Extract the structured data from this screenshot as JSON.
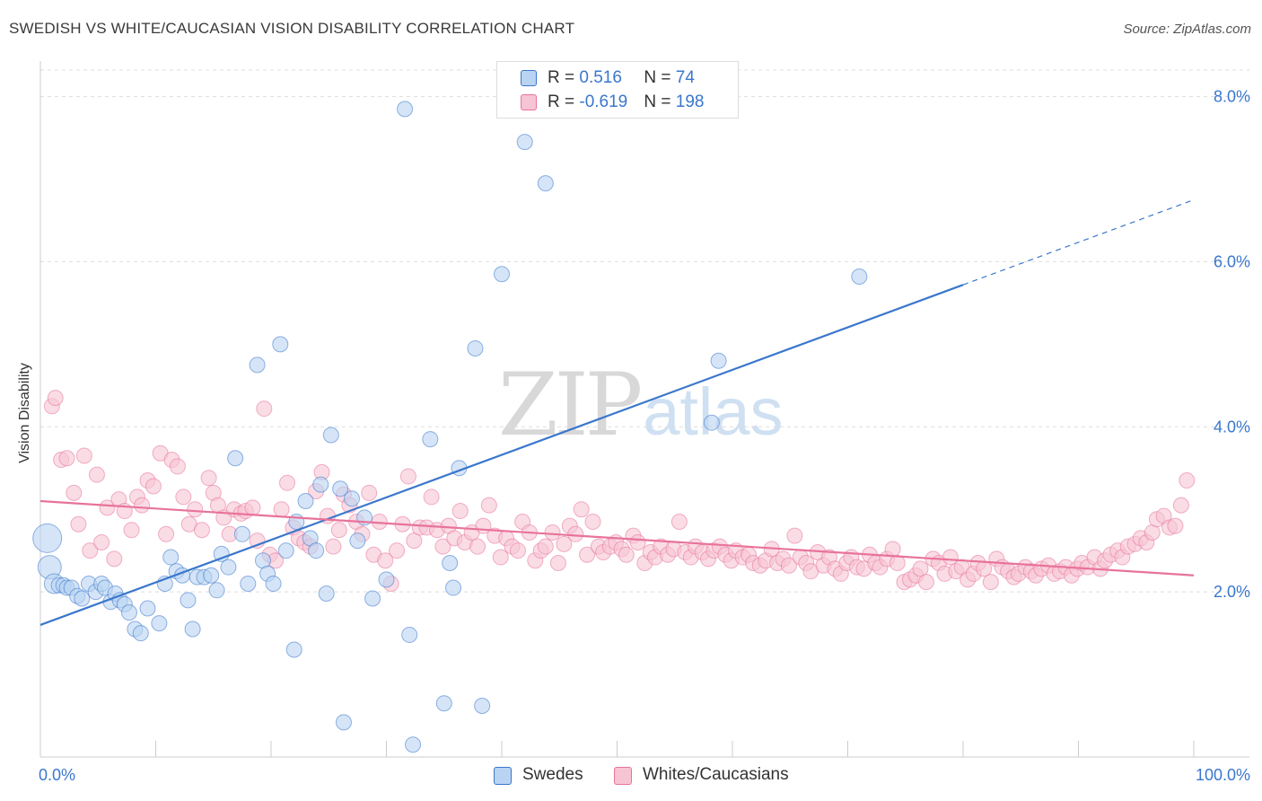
{
  "title": "SWEDISH VS WHITE/CAUCASIAN VISION DISABILITY CORRELATION CHART",
  "source": "Source: ZipAtlas.com",
  "watermark": {
    "zip": "ZIP",
    "atlas": "atlas"
  },
  "colors": {
    "blue": "#3a77cc",
    "blue_fill": "#b9d3f2",
    "pink": "#e8739a",
    "pink_fill": "#f7c4d4",
    "grid": "#dddddd"
  },
  "legend": {
    "rows": [
      {
        "r_label": "R = ",
        "r_value": "0.516",
        "n_label": "N = ",
        "n_value": "74"
      },
      {
        "r_label": "R = ",
        "r_value": "-0.619",
        "n_label": "N = ",
        "n_value": "198"
      }
    ]
  },
  "chart_data": {
    "type": "scatter",
    "title": "SWEDISH VS WHITE/CAUCASIAN VISION DISABILITY CORRELATION CHART",
    "xlabel": "",
    "ylabel": "Vision Disability",
    "xlim": [
      0,
      100
    ],
    "ylim": [
      0,
      8.3
    ],
    "x_tick_labels": [
      "0.0%",
      "100.0%"
    ],
    "y_ticks": [
      2.0,
      4.0,
      6.0,
      8.0
    ],
    "y_tick_labels": [
      "2.0%",
      "4.0%",
      "6.0%",
      "8.0%"
    ],
    "grid": true,
    "legend_position": "top-center",
    "series": [
      {
        "name": "Swedes",
        "color": "#3a77cc",
        "fill": "#b9d3f2",
        "trend": {
          "x": [
            0,
            80
          ],
          "y": [
            1.6,
            5.72
          ],
          "dashed_to": [
            100,
            6.75
          ]
        },
        "points": [
          [
            0.6,
            2.65
          ],
          [
            0.8,
            2.3
          ],
          [
            1.2,
            2.1
          ],
          [
            1.6,
            2.08
          ],
          [
            2.0,
            2.08
          ],
          [
            2.3,
            2.05
          ],
          [
            2.7,
            2.05
          ],
          [
            3.2,
            1.95
          ],
          [
            3.6,
            1.92
          ],
          [
            4.2,
            2.1
          ],
          [
            4.8,
            2.0
          ],
          [
            5.3,
            2.1
          ],
          [
            5.6,
            2.05
          ],
          [
            6.1,
            1.88
          ],
          [
            6.5,
            1.98
          ],
          [
            6.9,
            1.9
          ],
          [
            7.3,
            1.85
          ],
          [
            7.7,
            1.75
          ],
          [
            8.2,
            1.55
          ],
          [
            8.7,
            1.5
          ],
          [
            9.3,
            1.8
          ],
          [
            10.3,
            1.62
          ],
          [
            10.8,
            2.1
          ],
          [
            11.3,
            2.42
          ],
          [
            11.8,
            2.25
          ],
          [
            12.3,
            2.2
          ],
          [
            12.8,
            1.9
          ],
          [
            13.2,
            1.55
          ],
          [
            13.6,
            2.18
          ],
          [
            14.2,
            2.18
          ],
          [
            14.8,
            2.2
          ],
          [
            15.3,
            2.02
          ],
          [
            15.7,
            2.46
          ],
          [
            16.3,
            2.3
          ],
          [
            16.9,
            3.62
          ],
          [
            17.5,
            2.7
          ],
          [
            18.0,
            2.1
          ],
          [
            18.8,
            4.75
          ],
          [
            19.3,
            2.38
          ],
          [
            19.7,
            2.22
          ],
          [
            20.2,
            2.1
          ],
          [
            20.8,
            5.0
          ],
          [
            21.3,
            2.5
          ],
          [
            22.0,
            1.3
          ],
          [
            22.2,
            2.85
          ],
          [
            23.0,
            3.1
          ],
          [
            23.4,
            2.65
          ],
          [
            23.9,
            2.5
          ],
          [
            24.3,
            3.3
          ],
          [
            24.8,
            1.98
          ],
          [
            25.2,
            3.9
          ],
          [
            26.0,
            3.25
          ],
          [
            26.3,
            0.42
          ],
          [
            27.0,
            3.13
          ],
          [
            27.5,
            2.62
          ],
          [
            28.1,
            2.9
          ],
          [
            28.8,
            1.92
          ],
          [
            30.0,
            2.15
          ],
          [
            31.6,
            7.85
          ],
          [
            32.0,
            1.48
          ],
          [
            32.3,
            0.15
          ],
          [
            33.8,
            3.85
          ],
          [
            35.0,
            0.65
          ],
          [
            35.5,
            2.35
          ],
          [
            35.8,
            2.05
          ],
          [
            36.3,
            3.5
          ],
          [
            37.7,
            4.95
          ],
          [
            38.3,
            0.62
          ],
          [
            40.0,
            5.85
          ],
          [
            42.0,
            7.45
          ],
          [
            43.8,
            6.95
          ],
          [
            58.2,
            4.05
          ],
          [
            58.8,
            4.8
          ],
          [
            71.0,
            5.82
          ]
        ]
      },
      {
        "name": "Whites/Caucasians",
        "color": "#e8739a",
        "fill": "#f7c4d4",
        "trend": {
          "x": [
            0,
            100
          ],
          "y": [
            3.1,
            2.2
          ]
        },
        "points": [
          [
            1.0,
            4.25
          ],
          [
            1.3,
            4.35
          ],
          [
            1.8,
            3.6
          ],
          [
            2.3,
            3.62
          ],
          [
            2.9,
            3.2
          ],
          [
            3.3,
            2.82
          ],
          [
            3.8,
            3.65
          ],
          [
            4.3,
            2.5
          ],
          [
            4.9,
            3.42
          ],
          [
            5.3,
            2.6
          ],
          [
            5.8,
            3.02
          ],
          [
            6.4,
            2.4
          ],
          [
            6.8,
            3.12
          ],
          [
            7.3,
            2.98
          ],
          [
            7.9,
            2.75
          ],
          [
            8.4,
            3.15
          ],
          [
            8.8,
            3.05
          ],
          [
            9.3,
            3.35
          ],
          [
            9.8,
            3.28
          ],
          [
            10.4,
            3.68
          ],
          [
            10.9,
            2.7
          ],
          [
            11.4,
            3.6
          ],
          [
            11.9,
            3.52
          ],
          [
            12.4,
            3.15
          ],
          [
            12.9,
            2.82
          ],
          [
            13.4,
            3.0
          ],
          [
            14.0,
            2.75
          ],
          [
            14.6,
            3.38
          ],
          [
            15.0,
            3.2
          ],
          [
            15.4,
            3.05
          ],
          [
            15.9,
            2.9
          ],
          [
            16.4,
            2.7
          ],
          [
            16.8,
            3.0
          ],
          [
            17.4,
            2.95
          ],
          [
            17.8,
            2.98
          ],
          [
            18.4,
            3.02
          ],
          [
            18.8,
            2.62
          ],
          [
            19.4,
            4.22
          ],
          [
            19.9,
            2.45
          ],
          [
            20.4,
            2.38
          ],
          [
            20.9,
            3.0
          ],
          [
            21.4,
            3.32
          ],
          [
            21.9,
            2.78
          ],
          [
            22.4,
            2.65
          ],
          [
            22.9,
            2.6
          ],
          [
            23.4,
            2.55
          ],
          [
            23.9,
            3.22
          ],
          [
            24.4,
            3.45
          ],
          [
            24.9,
            2.92
          ],
          [
            25.4,
            2.55
          ],
          [
            25.9,
            2.75
          ],
          [
            26.3,
            3.18
          ],
          [
            26.8,
            3.05
          ],
          [
            27.4,
            2.85
          ],
          [
            27.9,
            2.7
          ],
          [
            28.5,
            3.2
          ],
          [
            28.9,
            2.45
          ],
          [
            29.4,
            2.85
          ],
          [
            29.9,
            2.38
          ],
          [
            30.4,
            2.1
          ],
          [
            30.9,
            2.5
          ],
          [
            31.4,
            2.82
          ],
          [
            31.9,
            3.4
          ],
          [
            32.4,
            2.62
          ],
          [
            32.9,
            2.78
          ],
          [
            33.5,
            2.78
          ],
          [
            33.9,
            3.15
          ],
          [
            34.4,
            2.75
          ],
          [
            34.9,
            2.55
          ],
          [
            35.4,
            2.8
          ],
          [
            35.9,
            2.65
          ],
          [
            36.4,
            2.98
          ],
          [
            36.8,
            2.6
          ],
          [
            37.4,
            2.72
          ],
          [
            37.9,
            2.55
          ],
          [
            38.4,
            2.8
          ],
          [
            38.9,
            3.05
          ],
          [
            39.4,
            2.68
          ],
          [
            39.9,
            2.42
          ],
          [
            40.4,
            2.65
          ],
          [
            40.9,
            2.55
          ],
          [
            41.4,
            2.5
          ],
          [
            41.8,
            2.85
          ],
          [
            42.4,
            2.72
          ],
          [
            42.9,
            2.38
          ],
          [
            43.4,
            2.5
          ],
          [
            43.8,
            2.55
          ],
          [
            44.4,
            2.72
          ],
          [
            44.9,
            2.35
          ],
          [
            45.4,
            2.58
          ],
          [
            45.9,
            2.8
          ],
          [
            46.4,
            2.7
          ],
          [
            46.9,
            3.0
          ],
          [
            47.4,
            2.45
          ],
          [
            47.9,
            2.85
          ],
          [
            48.4,
            2.55
          ],
          [
            48.8,
            2.48
          ],
          [
            49.4,
            2.55
          ],
          [
            49.9,
            2.6
          ],
          [
            50.4,
            2.52
          ],
          [
            50.8,
            2.45
          ],
          [
            51.4,
            2.68
          ],
          [
            51.8,
            2.6
          ],
          [
            52.4,
            2.35
          ],
          [
            52.9,
            2.48
          ],
          [
            53.3,
            2.42
          ],
          [
            53.8,
            2.55
          ],
          [
            54.4,
            2.45
          ],
          [
            54.9,
            2.52
          ],
          [
            55.4,
            2.85
          ],
          [
            55.9,
            2.48
          ],
          [
            56.4,
            2.42
          ],
          [
            56.8,
            2.55
          ],
          [
            57.4,
            2.48
          ],
          [
            57.9,
            2.4
          ],
          [
            58.4,
            2.5
          ],
          [
            58.9,
            2.55
          ],
          [
            59.4,
            2.45
          ],
          [
            59.9,
            2.38
          ],
          [
            60.3,
            2.5
          ],
          [
            60.9,
            2.42
          ],
          [
            61.4,
            2.45
          ],
          [
            61.8,
            2.35
          ],
          [
            62.4,
            2.32
          ],
          [
            62.9,
            2.38
          ],
          [
            63.4,
            2.52
          ],
          [
            63.9,
            2.35
          ],
          [
            64.4,
            2.4
          ],
          [
            64.9,
            2.32
          ],
          [
            65.4,
            2.68
          ],
          [
            65.9,
            2.42
          ],
          [
            66.4,
            2.35
          ],
          [
            66.8,
            2.25
          ],
          [
            67.4,
            2.48
          ],
          [
            67.9,
            2.32
          ],
          [
            68.4,
            2.42
          ],
          [
            68.9,
            2.28
          ],
          [
            69.4,
            2.22
          ],
          [
            69.9,
            2.35
          ],
          [
            70.3,
            2.42
          ],
          [
            70.8,
            2.3
          ],
          [
            71.4,
            2.28
          ],
          [
            71.9,
            2.45
          ],
          [
            72.4,
            2.35
          ],
          [
            72.8,
            2.3
          ],
          [
            73.4,
            2.4
          ],
          [
            73.9,
            2.52
          ],
          [
            74.3,
            2.35
          ],
          [
            74.9,
            2.12
          ],
          [
            75.4,
            2.15
          ],
          [
            75.9,
            2.2
          ],
          [
            76.3,
            2.28
          ],
          [
            76.8,
            2.12
          ],
          [
            77.4,
            2.4
          ],
          [
            77.9,
            2.35
          ],
          [
            78.4,
            2.22
          ],
          [
            78.9,
            2.42
          ],
          [
            79.4,
            2.25
          ],
          [
            79.9,
            2.3
          ],
          [
            80.4,
            2.15
          ],
          [
            80.9,
            2.22
          ],
          [
            81.3,
            2.35
          ],
          [
            81.8,
            2.28
          ],
          [
            82.4,
            2.12
          ],
          [
            82.9,
            2.4
          ],
          [
            83.4,
            2.3
          ],
          [
            83.9,
            2.25
          ],
          [
            84.4,
            2.18
          ],
          [
            84.8,
            2.22
          ],
          [
            85.4,
            2.3
          ],
          [
            85.9,
            2.25
          ],
          [
            86.3,
            2.2
          ],
          [
            86.8,
            2.28
          ],
          [
            87.4,
            2.32
          ],
          [
            87.9,
            2.22
          ],
          [
            88.4,
            2.25
          ],
          [
            88.9,
            2.3
          ],
          [
            89.4,
            2.2
          ],
          [
            89.9,
            2.28
          ],
          [
            90.3,
            2.35
          ],
          [
            90.8,
            2.3
          ],
          [
            91.4,
            2.42
          ],
          [
            91.9,
            2.28
          ],
          [
            92.3,
            2.38
          ],
          [
            92.8,
            2.45
          ],
          [
            93.4,
            2.5
          ],
          [
            93.8,
            2.42
          ],
          [
            94.3,
            2.55
          ],
          [
            94.9,
            2.58
          ],
          [
            95.4,
            2.65
          ],
          [
            95.9,
            2.6
          ],
          [
            96.4,
            2.72
          ],
          [
            96.8,
            2.88
          ],
          [
            97.4,
            2.92
          ],
          [
            97.9,
            2.78
          ],
          [
            98.4,
            2.8
          ],
          [
            98.9,
            3.05
          ],
          [
            99.4,
            3.35
          ]
        ]
      }
    ]
  }
}
